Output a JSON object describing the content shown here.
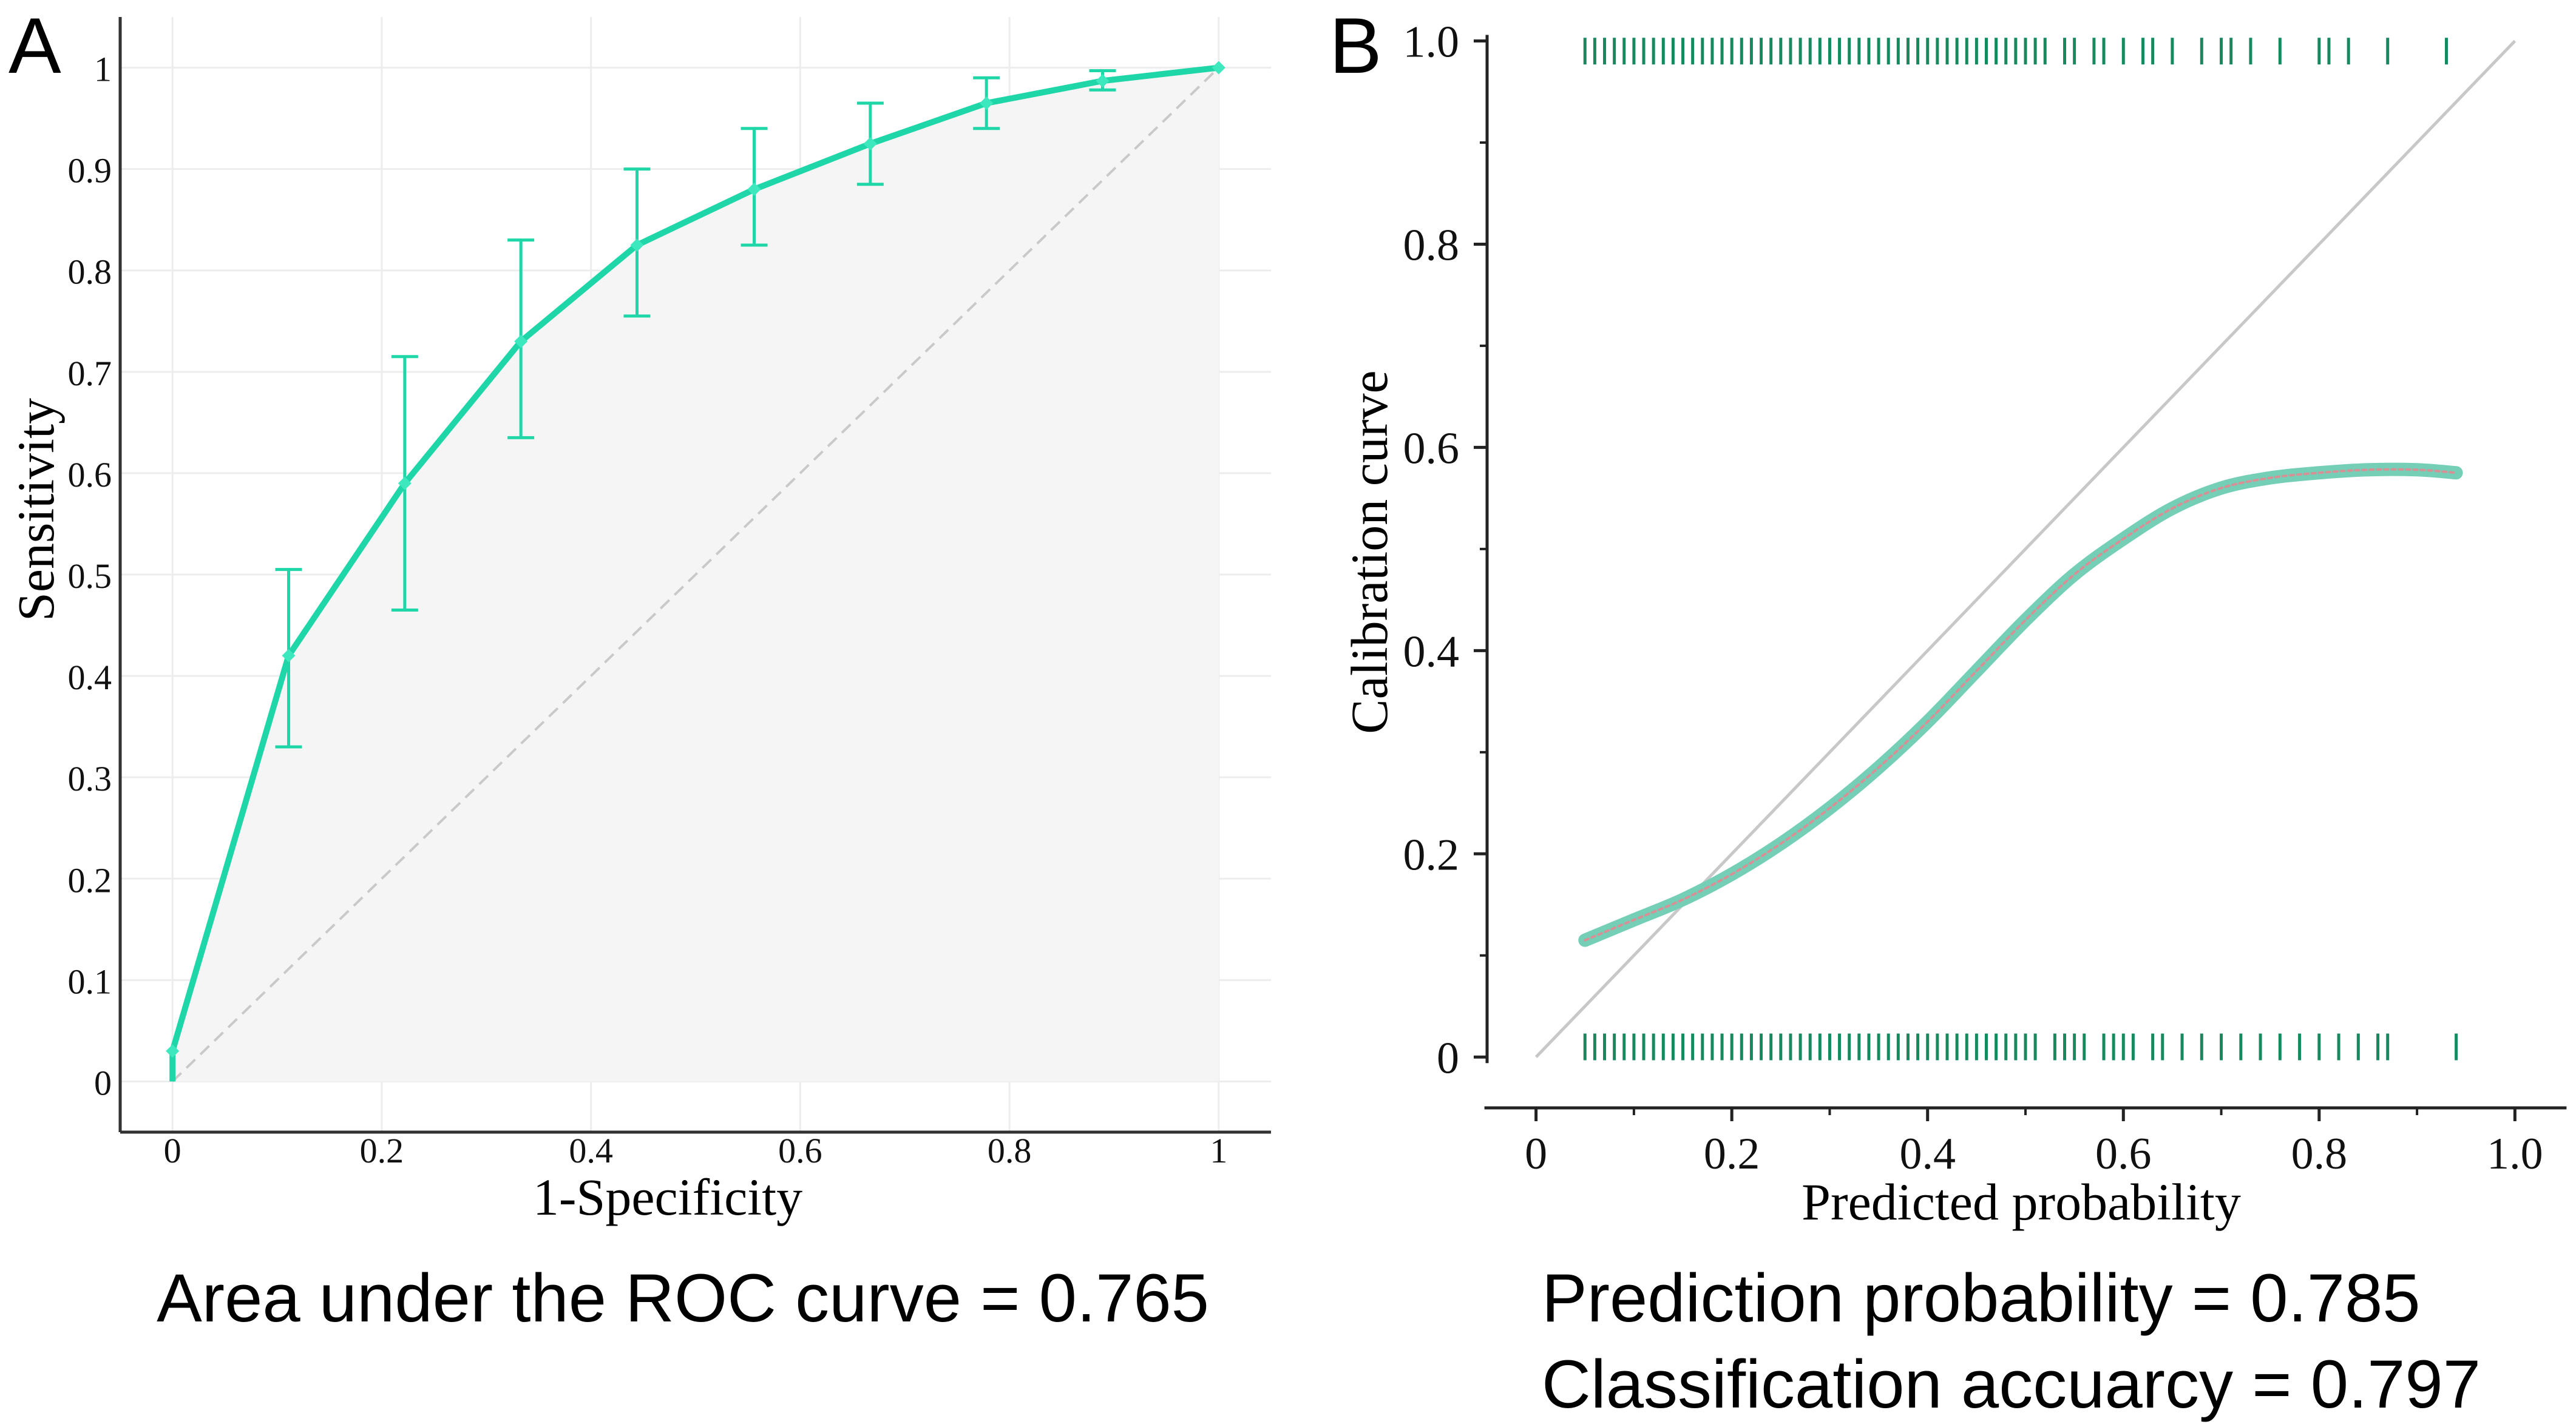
{
  "chart_data": [
    {
      "panel_label": "A",
      "type": "line",
      "title": "",
      "xlabel": "1-Specificity",
      "ylabel": "Sensitivity",
      "xlim": [
        -0.05,
        1.05
      ],
      "ylim": [
        -0.05,
        1.05
      ],
      "x_ticks": [
        "0",
        "0.2",
        "0.4",
        "0.6",
        "0.8",
        "1"
      ],
      "y_ticks": [
        "0",
        "0.1",
        "0.2",
        "0.3",
        "0.4",
        "0.5",
        "0.6",
        "0.7",
        "0.8",
        "0.9",
        "1"
      ],
      "grid": true,
      "series": [
        {
          "name": "ROC",
          "color": "#1fd6a8",
          "x": [
            0.0,
            0.111,
            0.222,
            0.333,
            0.444,
            0.556,
            0.667,
            0.778,
            0.889,
            1.0
          ],
          "y": [
            0.03,
            0.42,
            0.59,
            0.73,
            0.825,
            0.88,
            0.925,
            0.965,
            0.987,
            1.0
          ],
          "err_low": [
            null,
            0.33,
            0.465,
            0.635,
            0.755,
            0.825,
            0.885,
            0.94,
            0.978,
            null
          ],
          "err_high": [
            null,
            0.505,
            0.715,
            0.83,
            0.9,
            0.94,
            0.965,
            0.99,
            0.997,
            null
          ]
        }
      ],
      "reference_line": {
        "x": [
          0,
          1
        ],
        "y": [
          0,
          1
        ]
      },
      "caption": "Area under the ROC curve = 0.765"
    },
    {
      "panel_label": "B",
      "type": "line",
      "title": "",
      "xlabel": "Predicted probability",
      "ylabel": "Calibration curve",
      "xlim": [
        -0.05,
        1.05
      ],
      "ylim": [
        -0.05,
        1.02
      ],
      "x_ticks": [
        "0",
        "0.2",
        "0.4",
        "0.6",
        "0.8",
        "1.0"
      ],
      "y_ticks": [
        "0",
        "0.2",
        "0.4",
        "0.6",
        "0.8",
        "1.0"
      ],
      "grid": false,
      "series": [
        {
          "name": "Calibration",
          "color": "#74cfb6",
          "x": [
            0.05,
            0.1,
            0.15,
            0.2,
            0.25,
            0.3,
            0.35,
            0.4,
            0.45,
            0.5,
            0.55,
            0.6,
            0.65,
            0.7,
            0.75,
            0.8,
            0.85,
            0.9,
            0.94
          ],
          "y": [
            0.115,
            0.135,
            0.155,
            0.18,
            0.21,
            0.245,
            0.285,
            0.33,
            0.38,
            0.43,
            0.475,
            0.51,
            0.54,
            0.56,
            0.57,
            0.575,
            0.578,
            0.578,
            0.575
          ]
        }
      ],
      "reference_line": {
        "x": [
          0,
          1
        ],
        "y": [
          0,
          1
        ]
      },
      "rug_color": "#168a5e",
      "rug_top": [
        0.05,
        0.06,
        0.07,
        0.08,
        0.09,
        0.1,
        0.11,
        0.12,
        0.13,
        0.14,
        0.15,
        0.16,
        0.17,
        0.18,
        0.19,
        0.2,
        0.21,
        0.22,
        0.23,
        0.24,
        0.25,
        0.26,
        0.27,
        0.28,
        0.29,
        0.3,
        0.31,
        0.32,
        0.33,
        0.34,
        0.35,
        0.36,
        0.37,
        0.38,
        0.39,
        0.4,
        0.41,
        0.42,
        0.43,
        0.44,
        0.45,
        0.46,
        0.47,
        0.48,
        0.49,
        0.5,
        0.51,
        0.52,
        0.54,
        0.55,
        0.57,
        0.58,
        0.6,
        0.62,
        0.63,
        0.65,
        0.68,
        0.7,
        0.71,
        0.73,
        0.76,
        0.8,
        0.81,
        0.83,
        0.87,
        0.93
      ],
      "rug_bottom": [
        0.05,
        0.06,
        0.07,
        0.08,
        0.09,
        0.1,
        0.11,
        0.12,
        0.13,
        0.14,
        0.15,
        0.16,
        0.17,
        0.18,
        0.19,
        0.2,
        0.21,
        0.22,
        0.23,
        0.24,
        0.25,
        0.26,
        0.27,
        0.28,
        0.29,
        0.3,
        0.31,
        0.32,
        0.33,
        0.34,
        0.35,
        0.36,
        0.37,
        0.38,
        0.39,
        0.4,
        0.41,
        0.42,
        0.43,
        0.44,
        0.45,
        0.46,
        0.47,
        0.48,
        0.49,
        0.5,
        0.51,
        0.53,
        0.54,
        0.55,
        0.56,
        0.58,
        0.59,
        0.6,
        0.61,
        0.63,
        0.64,
        0.66,
        0.68,
        0.7,
        0.72,
        0.74,
        0.76,
        0.78,
        0.8,
        0.82,
        0.84,
        0.86,
        0.87,
        0.94
      ],
      "caption_lines": [
        "Prediction probability = 0.785",
        "Classification accuarcy = 0.797"
      ]
    }
  ]
}
